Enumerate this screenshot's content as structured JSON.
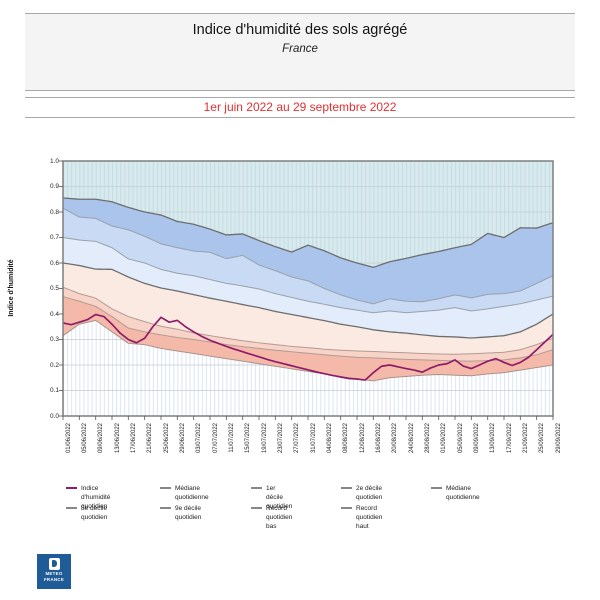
{
  "header": {
    "title": "Indice d'humidité des sols agrégé",
    "subtitle": "France"
  },
  "period": {
    "label": "1er juin 2022 au 29 septembre 2022",
    "color": "#e03030"
  },
  "colors": {
    "title_text": "#141414",
    "separator": "#a8a8a8",
    "header_bg": "#f4f4f4",
    "teal_bg": "#d8eaee",
    "teal_stripe": "#c2dde3",
    "hatch_bg": "#ffffff",
    "hatch_stripe": "#dde6f1",
    "grid": "#c4ccd2",
    "frame": "#7e7e7e",
    "tick": "#555555",
    "band_colors": [
      "#aac4ec",
      "#c8daf4",
      "#e3ecfa",
      "#faeae2",
      "#f7d3c8",
      "#f5b9aa"
    ],
    "index_line": "#8e1d68",
    "legend_gray": "#878787",
    "logo_blue": "#1e5b97"
  },
  "chart_data": {
    "type": "area",
    "title": "Indice d'humidité des sols agrégé",
    "subtitle": "France",
    "xlabel": "",
    "ylabel": "Indice d'humidité",
    "ylim": [
      0.0,
      1.0
    ],
    "grid": true,
    "yticks": [
      "1.0",
      "0.9",
      "0.8",
      "0.7",
      "0.6",
      "0.5",
      "0.4",
      "0.3",
      "0.2",
      "0.1",
      "0.0"
    ],
    "x_tick_labels": [
      "01/06/2022",
      "05/06/2022",
      "09/06/2022",
      "13/06/2022",
      "17/06/2022",
      "21/06/2022",
      "25/06/2022",
      "29/06/2022",
      "03/07/2022",
      "07/07/2022",
      "11/07/2022",
      "15/07/2022",
      "19/07/2022",
      "23/07/2022",
      "27/07/2022",
      "31/07/2022",
      "04/08/2022",
      "08/08/2022",
      "12/08/2022",
      "16/08/2022",
      "20/08/2022",
      "24/08/2022",
      "28/08/2022",
      "01/09/2022",
      "05/09/2022",
      "09/09/2022",
      "13/09/2022",
      "17/09/2022",
      "21/09/2022",
      "25/09/2022",
      "29/09/2022"
    ],
    "x_tick_day_step": 4,
    "days_total": 120,
    "band_order": [
      "record_haut",
      "decile9",
      "decile8",
      "mediane",
      "decile2",
      "decile1",
      "record_bas"
    ],
    "series": [
      {
        "id": "record_haut",
        "name": "Record quotidien haut",
        "color": "#6e6e6e",
        "width": 1.3,
        "day_step": 4,
        "values": [
          0.855,
          0.85,
          0.85,
          0.84,
          0.818,
          0.8,
          0.788,
          0.763,
          0.752,
          0.733,
          0.71,
          0.714,
          0.688,
          0.664,
          0.643,
          0.67,
          0.648,
          0.62,
          0.6,
          0.583,
          0.605,
          0.618,
          0.633,
          0.645,
          0.66,
          0.673,
          0.716,
          0.7,
          0.738,
          0.737,
          0.758
        ]
      },
      {
        "id": "decile9",
        "name": "9e décile quotidien",
        "color": "#98a1ab",
        "width": 1,
        "day_step": 4,
        "values": [
          0.815,
          0.78,
          0.775,
          0.745,
          0.73,
          0.705,
          0.675,
          0.66,
          0.647,
          0.642,
          0.617,
          0.63,
          0.592,
          0.57,
          0.545,
          0.53,
          0.5,
          0.475,
          0.455,
          0.44,
          0.46,
          0.45,
          0.448,
          0.46,
          0.475,
          0.463,
          0.477,
          0.48,
          0.49,
          0.52,
          0.55
        ]
      },
      {
        "id": "decile8",
        "name": "8e décile quotidien",
        "color": "#98a1ab",
        "width": 1,
        "day_step": 4,
        "values": [
          0.7,
          0.69,
          0.685,
          0.66,
          0.616,
          0.6,
          0.575,
          0.56,
          0.55,
          0.535,
          0.52,
          0.51,
          0.498,
          0.48,
          0.465,
          0.45,
          0.438,
          0.425,
          0.415,
          0.405,
          0.412,
          0.405,
          0.41,
          0.415,
          0.425,
          0.412,
          0.42,
          0.43,
          0.44,
          0.455,
          0.47
        ]
      },
      {
        "id": "mediane",
        "name": "Médiane quotidienne",
        "color": "#6e6e6e",
        "width": 1.3,
        "day_step": 4,
        "values": [
          0.6,
          0.59,
          0.576,
          0.575,
          0.545,
          0.52,
          0.502,
          0.49,
          0.476,
          0.462,
          0.45,
          0.437,
          0.425,
          0.41,
          0.398,
          0.386,
          0.374,
          0.36,
          0.35,
          0.338,
          0.33,
          0.325,
          0.318,
          0.312,
          0.31,
          0.306,
          0.31,
          0.315,
          0.33,
          0.36,
          0.4
        ]
      },
      {
        "id": "decile2",
        "name": "2e décile quotidien",
        "color": "#b49b93",
        "width": 1,
        "day_step": 4,
        "values": [
          0.505,
          0.48,
          0.462,
          0.42,
          0.39,
          0.37,
          0.352,
          0.34,
          0.326,
          0.315,
          0.305,
          0.295,
          0.287,
          0.28,
          0.273,
          0.268,
          0.262,
          0.258,
          0.255,
          0.253,
          0.25,
          0.248,
          0.245,
          0.243,
          0.242,
          0.244,
          0.247,
          0.25,
          0.26,
          0.28,
          0.305
        ]
      },
      {
        "id": "decile1",
        "name": "1er décile quotidien",
        "color": "#b49b93",
        "width": 1,
        "day_step": 4,
        "values": [
          0.468,
          0.45,
          0.43,
          0.39,
          0.345,
          0.33,
          0.318,
          0.308,
          0.3,
          0.29,
          0.28,
          0.272,
          0.265,
          0.258,
          0.252,
          0.246,
          0.24,
          0.235,
          0.23,
          0.228,
          0.225,
          0.222,
          0.22,
          0.218,
          0.216,
          0.215,
          0.217,
          0.22,
          0.228,
          0.24,
          0.26
        ]
      },
      {
        "id": "record_bas",
        "name": "Record quotidien bas",
        "color": "#a8938a",
        "width": 1,
        "day_step": 4,
        "values": [
          0.315,
          0.36,
          0.375,
          0.33,
          0.285,
          0.28,
          0.265,
          0.255,
          0.245,
          0.235,
          0.225,
          0.215,
          0.205,
          0.195,
          0.185,
          0.175,
          0.165,
          0.155,
          0.145,
          0.138,
          0.15,
          0.155,
          0.16,
          0.163,
          0.16,
          0.158,
          0.165,
          0.17,
          0.18,
          0.19,
          0.2
        ]
      },
      {
        "id": "indice",
        "name": "Indice d'humidité quotidien",
        "color": "#8e1d68",
        "width": 1.7,
        "day_step": 2,
        "values": [
          0.365,
          0.358,
          0.368,
          0.378,
          0.398,
          0.39,
          0.36,
          0.325,
          0.3,
          0.287,
          0.305,
          0.35,
          0.387,
          0.368,
          0.375,
          0.35,
          0.33,
          0.312,
          0.297,
          0.285,
          0.273,
          0.262,
          0.252,
          0.242,
          0.232,
          0.222,
          0.213,
          0.205,
          0.197,
          0.189,
          0.181,
          0.173,
          0.166,
          0.159,
          0.153,
          0.147,
          0.145,
          0.141,
          0.17,
          0.195,
          0.2,
          0.193,
          0.186,
          0.18,
          0.172,
          0.188,
          0.2,
          0.205,
          0.22,
          0.196,
          0.186,
          0.2,
          0.215,
          0.225,
          0.21,
          0.198,
          0.21,
          0.23,
          0.26,
          0.29,
          0.32
        ]
      }
    ]
  },
  "legend": {
    "rows": [
      [
        {
          "label": "Indice d'humidité\nquotidien",
          "color": "#8e1d68"
        },
        {
          "label": "Médiane\nquotidienne",
          "color": "#878787"
        },
        {
          "label": "1er décile quotidien",
          "color": "#878787"
        },
        {
          "label": "2e décile quotidien",
          "color": "#878787"
        },
        {
          "label": "Médiane\nquotidienne",
          "color": "#878787"
        }
      ],
      [
        {
          "label": "8e décile quotidien",
          "color": "#878787"
        },
        {
          "label": "9e décile quotidien",
          "color": "#878787"
        },
        {
          "label": "Record quotidien\nbas",
          "color": "#878787"
        },
        {
          "label": "Record quotidien\nhaut",
          "color": "#878787"
        }
      ]
    ]
  },
  "logo": {
    "line1": "METEO",
    "line2": "FRANCE"
  }
}
